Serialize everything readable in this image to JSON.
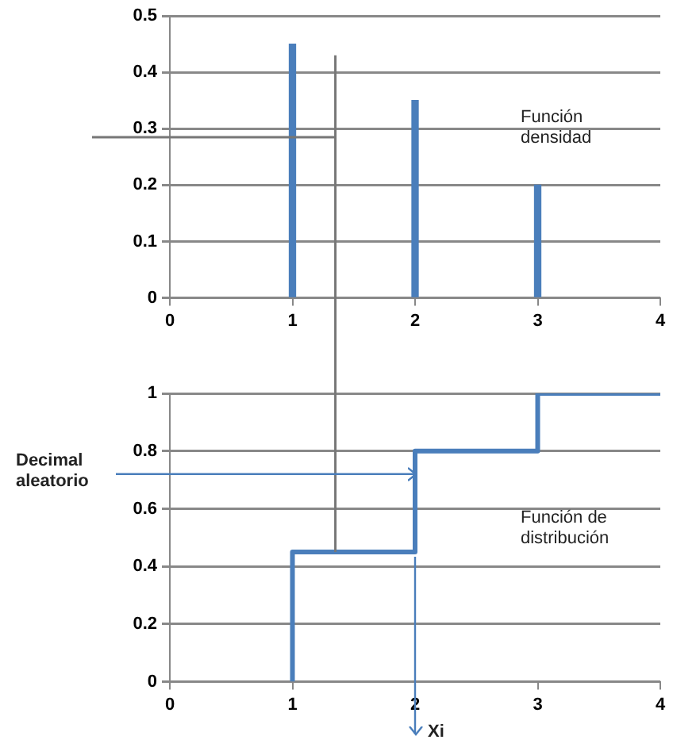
{
  "chart_data": [
    {
      "type": "bar",
      "x": [
        1,
        2,
        3
      ],
      "values": [
        0.45,
        0.35,
        0.2
      ],
      "color": "#4a7ebb",
      "xlim": [
        0,
        4
      ],
      "xticks": [
        0,
        1,
        2,
        3,
        4
      ],
      "ylim": [
        0,
        0.5
      ],
      "yticks": [
        0,
        0.1,
        0.2,
        0.3,
        0.4,
        0.5
      ],
      "grid": "y",
      "legend": false,
      "ref_lines": [
        {
          "axis": "x",
          "value": 1.35,
          "color": "#777777"
        },
        {
          "axis": "y",
          "value": 0.285,
          "color": "#777777"
        }
      ],
      "annotations": [
        "Función densidad"
      ]
    },
    {
      "type": "step",
      "x": [
        1,
        1,
        2,
        3,
        4
      ],
      "values": [
        0,
        0.45,
        0.8,
        1,
        1
      ],
      "color": "#4a7ebb",
      "xlim": [
        0,
        4
      ],
      "xticks": [
        0,
        1,
        2,
        3,
        4
      ],
      "ylim": [
        0,
        1
      ],
      "yticks": [
        0,
        0.2,
        0.4,
        0.6,
        0.8,
        1
      ],
      "grid": "y",
      "legend": false,
      "marker": "none",
      "ref_lines": [
        {
          "axis": "x",
          "value": 1.35,
          "color": "#777777"
        },
        {
          "axis": "y",
          "value": 0.72,
          "label": "Decimal aleatorio",
          "color": "#4a7ebb"
        },
        {
          "axis": "x",
          "value": 2,
          "label": "Xi",
          "color": "#4a7ebb"
        }
      ],
      "annotations": [
        "Función de distribución"
      ]
    }
  ]
}
